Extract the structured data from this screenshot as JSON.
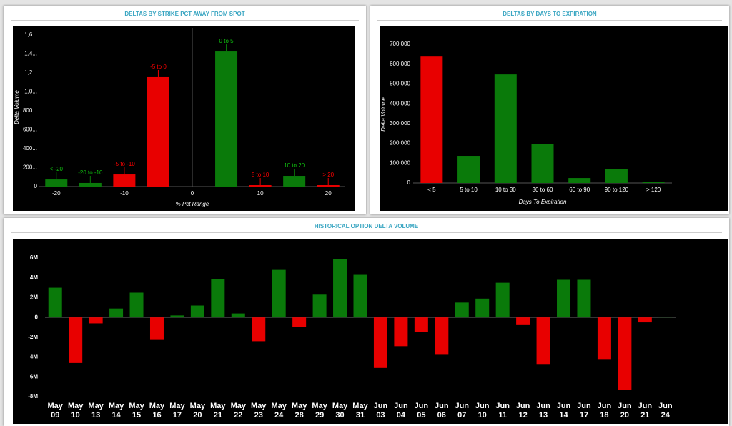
{
  "chart_data": [
    {
      "type": "bar",
      "title": "DELTAS BY STRIKE PCT AWAY FROM SPOT",
      "x_label": "% Pct Range",
      "y_label": "Delta Volume",
      "categories": [
        "< -20",
        "-20 to -10",
        "-5 to -10",
        "-5 to 0",
        "0 to 5",
        "5 to 10",
        "10 to 20",
        "> 20"
      ],
      "x": [
        -20,
        -15,
        -10,
        -5,
        5,
        10,
        15,
        20
      ],
      "values": [
        75000,
        38000,
        128000,
        1155000,
        1426000,
        15000,
        113000,
        15000
      ],
      "colors": [
        "#0a7a0a",
        "#0a7a0a",
        "#e80000",
        "#e80000",
        "#0a7a0a",
        "#e80000",
        "#0a7a0a",
        "#e80000"
      ],
      "xlim": [
        -22.5,
        22.5
      ],
      "xticks": [
        -20,
        -10,
        0,
        10,
        20
      ],
      "ylim": [
        0,
        1600000
      ],
      "yticks": [
        0,
        {
          "value": 200000,
          "label": "200..."
        },
        {
          "value": 400000,
          "label": "400..."
        },
        {
          "value": 600000,
          "label": "600..."
        },
        {
          "value": 800000,
          "label": "800..."
        },
        {
          "value": 1000000,
          "label": "1,0..."
        },
        {
          "value": 1200000,
          "label": "1,2..."
        },
        {
          "value": 1400000,
          "label": "1,4..."
        },
        {
          "value": 1600000,
          "label": "1,6..."
        }
      ]
    },
    {
      "type": "bar",
      "title": "DELTAS BY DAYS TO EXPIRATION",
      "x_label": "Days To Expiration",
      "y_label": "Delta Volume",
      "categories": [
        "< 5",
        "5 to 10",
        "10 to 30",
        "30 to 60",
        "60 to 90",
        "90 to 120",
        "> 120"
      ],
      "values": [
        638000,
        137000,
        548000,
        195000,
        25000,
        69000,
        7000
      ],
      "colors": [
        "#e80000",
        "#0a7a0a",
        "#0a7a0a",
        "#0a7a0a",
        "#0a7a0a",
        "#0a7a0a",
        "#0a7a0a"
      ],
      "ylim": [
        0,
        700000
      ],
      "yticks": [
        0,
        {
          "value": 100000,
          "label": "100,000"
        },
        {
          "value": 200000,
          "label": "200,000"
        },
        {
          "value": 300000,
          "label": "300,000"
        },
        {
          "value": 400000,
          "label": "400,000"
        },
        {
          "value": 500000,
          "label": "500,000"
        },
        {
          "value": 600000,
          "label": "600,000"
        },
        {
          "value": 700000,
          "label": "700,000"
        }
      ]
    },
    {
      "type": "bar",
      "title": "HISTORICAL OPTION DELTA VOLUME",
      "categories": [
        "May 09",
        "May 10",
        "May 13",
        "May 14",
        "May 15",
        "May 16",
        "May 17",
        "May 20",
        "May 21",
        "May 22",
        "May 23",
        "May 24",
        "May 28",
        "May 29",
        "May 30",
        "May 31",
        "Jun 03",
        "Jun 04",
        "Jun 05",
        "Jun 06",
        "Jun 07",
        "Jun 10",
        "Jun 11",
        "Jun 12",
        "Jun 13",
        "Jun 14",
        "Jun 17",
        "Jun 18",
        "Jun 20",
        "Jun 21",
        "Jun 24"
      ],
      "values": [
        3000000,
        -4600000,
        -600000,
        900000,
        2500000,
        -2200000,
        200000,
        1200000,
        3900000,
        400000,
        -2400000,
        4800000,
        -1000000,
        2300000,
        5900000,
        4300000,
        -5100000,
        -2900000,
        -1500000,
        -3700000,
        1500000,
        1900000,
        3500000,
        -700000,
        -4700000,
        3800000,
        3800000,
        -4200000,
        -7300000,
        -500000,
        50000
      ],
      "colors": [
        "#0a7a0a",
        "#e80000",
        "#e80000",
        "#0a7a0a",
        "#0a7a0a",
        "#e80000",
        "#0a7a0a",
        "#0a7a0a",
        "#0a7a0a",
        "#0a7a0a",
        "#e80000",
        "#0a7a0a",
        "#e80000",
        "#0a7a0a",
        "#0a7a0a",
        "#0a7a0a",
        "#e80000",
        "#e80000",
        "#e80000",
        "#e80000",
        "#0a7a0a",
        "#0a7a0a",
        "#0a7a0a",
        "#e80000",
        "#e80000",
        "#0a7a0a",
        "#0a7a0a",
        "#e80000",
        "#e80000",
        "#e80000",
        "#0a7a0a"
      ],
      "ylim": [
        -8000000,
        6000000
      ],
      "yticks": [
        {
          "value": -8000000,
          "label": "-8M"
        },
        {
          "value": -6000000,
          "label": "-6M"
        },
        {
          "value": -4000000,
          "label": "-4M"
        },
        {
          "value": -2000000,
          "label": "-2M"
        },
        0,
        {
          "value": 2000000,
          "label": "2M"
        },
        {
          "value": 4000000,
          "label": "4M"
        },
        {
          "value": 6000000,
          "label": "6M"
        }
      ]
    }
  ]
}
